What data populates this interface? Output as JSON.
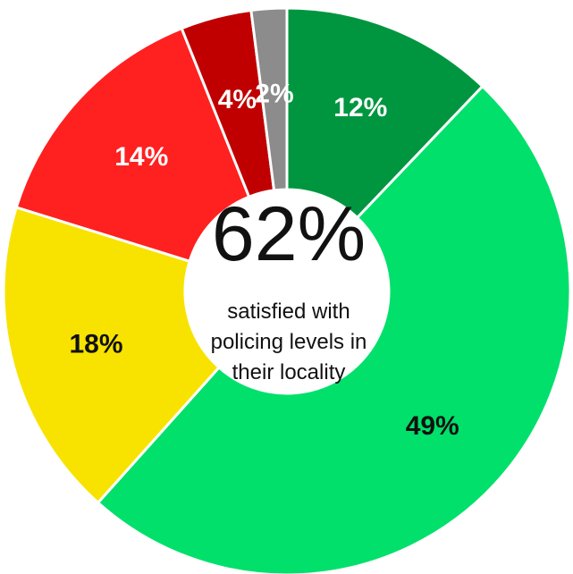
{
  "center": {
    "value": "62%",
    "lines": [
      "satisfied with",
      "policing levels in",
      "their locality"
    ]
  },
  "chart_data": {
    "type": "pie",
    "donut": true,
    "start": "top",
    "direction": "clockwise",
    "slices": [
      {
        "value": 12,
        "label": "12%",
        "color": "#00963F",
        "label_color": "#ffffff"
      },
      {
        "value": 49,
        "label": "49%",
        "color": "#00E06B",
        "label_color": "#111111"
      },
      {
        "value": 18,
        "label": "18%",
        "color": "#F8E300",
        "label_color": "#111111"
      },
      {
        "value": 14,
        "label": "14%",
        "color": "#FF2020",
        "label_color": "#ffffff"
      },
      {
        "value": 4,
        "label": "4%",
        "color": "#C00000",
        "label_color": "#ffffff"
      },
      {
        "value": 2,
        "label": "2%",
        "color": "#8C8C8C",
        "label_color": "#ffffff"
      }
    ]
  }
}
